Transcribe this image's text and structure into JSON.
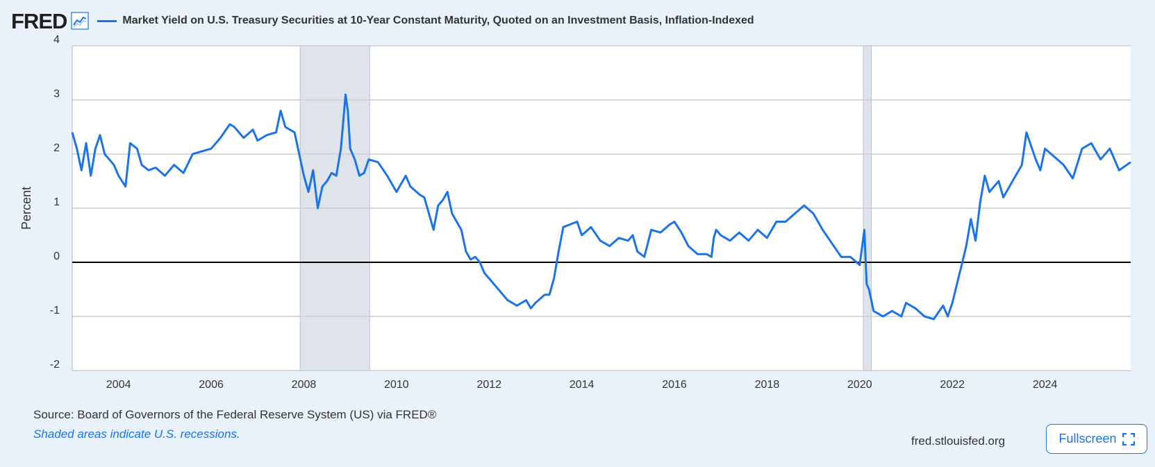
{
  "header": {
    "logo_text": "FRED",
    "logo_icon": "line-chart-icon",
    "series_title": "Market Yield on U.S. Treasury Securities at 10-Year Constant Maturity, Quoted on an Investment Basis, Inflation-Indexed"
  },
  "footer": {
    "source": "Source: Board of Governors of the Federal Reserve System (US) via FRED®",
    "recession_note": "Shaded areas indicate U.S. recessions.",
    "site": "fred.stlouisfed.org",
    "fullscreen_label": "Fullscreen",
    "fullscreen_icon": "fullscreen-icon"
  },
  "colors": {
    "line": "#1a73e8",
    "recession": "#dfe4ea",
    "background": "#e9f1fa",
    "plot": "#ffffff",
    "grid": "#c8cdd2",
    "zero_line": "#000000"
  },
  "chart_data": {
    "type": "line",
    "title": "Market Yield on U.S. Treasury Securities at 10-Year Constant Maturity, Quoted on an Investment Basis, Inflation-Indexed",
    "xlabel": "",
    "ylabel": "Percent",
    "xlim": [
      2003.0,
      2025.85
    ],
    "ylim": [
      -2,
      4
    ],
    "yticks": [
      -2,
      -1,
      0,
      1,
      2,
      3,
      4
    ],
    "xticks": [
      2004,
      2006,
      2008,
      2010,
      2012,
      2014,
      2016,
      2018,
      2020,
      2022,
      2024
    ],
    "grid": true,
    "recessions": [
      [
        2007.92,
        2009.42
      ],
      [
        2020.08,
        2020.25
      ]
    ],
    "series": [
      {
        "name": "Market Yield on U.S. Treasury Securities at 10-Year Constant Maturity, Quoted on an Investment Basis, Inflation-Indexed",
        "x": [
          2003.0,
          2003.1,
          2003.2,
          2003.3,
          2003.4,
          2003.5,
          2003.6,
          2003.7,
          2003.8,
          2003.9,
          2004.0,
          2004.15,
          2004.25,
          2004.4,
          2004.5,
          2004.65,
          2004.8,
          2005.0,
          2005.2,
          2005.4,
          2005.6,
          2005.8,
          2006.0,
          2006.2,
          2006.4,
          2006.5,
          2006.7,
          2006.9,
          2007.0,
          2007.2,
          2007.4,
          2007.5,
          2007.6,
          2007.8,
          2007.9,
          2008.0,
          2008.1,
          2008.2,
          2008.3,
          2008.4,
          2008.5,
          2008.6,
          2008.7,
          2008.8,
          2008.85,
          2008.9,
          2008.95,
          2009.0,
          2009.1,
          2009.2,
          2009.3,
          2009.4,
          2009.6,
          2009.8,
          2010.0,
          2010.2,
          2010.3,
          2010.5,
          2010.6,
          2010.7,
          2010.8,
          2010.9,
          2011.0,
          2011.1,
          2011.2,
          2011.4,
          2011.5,
          2011.6,
          2011.7,
          2011.8,
          2011.9,
          2012.0,
          2012.2,
          2012.4,
          2012.6,
          2012.8,
          2012.9,
          2013.0,
          2013.2,
          2013.3,
          2013.4,
          2013.5,
          2013.6,
          2013.75,
          2013.9,
          2014.0,
          2014.2,
          2014.4,
          2014.6,
          2014.8,
          2015.0,
          2015.1,
          2015.2,
          2015.35,
          2015.5,
          2015.7,
          2015.9,
          2016.0,
          2016.15,
          2016.3,
          2016.5,
          2016.7,
          2016.8,
          2016.85,
          2016.9,
          2017.0,
          2017.2,
          2017.4,
          2017.6,
          2017.8,
          2018.0,
          2018.2,
          2018.4,
          2018.6,
          2018.8,
          2019.0,
          2019.2,
          2019.4,
          2019.6,
          2019.8,
          2020.0,
          2020.1,
          2020.15,
          2020.2,
          2020.3,
          2020.5,
          2020.7,
          2020.9,
          2021.0,
          2021.2,
          2021.4,
          2021.6,
          2021.8,
          2021.9,
          2022.0,
          2022.1,
          2022.2,
          2022.3,
          2022.4,
          2022.5,
          2022.6,
          2022.7,
          2022.8,
          2022.9,
          2023.0,
          2023.1,
          2023.3,
          2023.5,
          2023.6,
          2023.8,
          2023.9,
          2024.0,
          2024.2,
          2024.4,
          2024.6,
          2024.8,
          2025.0,
          2025.2,
          2025.4,
          2025.6,
          2025.85
        ],
        "values": [
          2.4,
          2.1,
          1.7,
          2.2,
          1.6,
          2.1,
          2.35,
          2.0,
          1.9,
          1.8,
          1.6,
          1.4,
          2.2,
          2.1,
          1.8,
          1.7,
          1.75,
          1.6,
          1.8,
          1.65,
          2.0,
          2.05,
          2.1,
          2.3,
          2.55,
          2.5,
          2.3,
          2.45,
          2.25,
          2.35,
          2.4,
          2.8,
          2.5,
          2.4,
          2.0,
          1.6,
          1.3,
          1.7,
          1.0,
          1.4,
          1.5,
          1.65,
          1.6,
          2.1,
          2.6,
          3.1,
          2.8,
          2.1,
          1.9,
          1.6,
          1.65,
          1.9,
          1.85,
          1.6,
          1.3,
          1.6,
          1.4,
          1.25,
          1.2,
          0.9,
          0.6,
          1.05,
          1.15,
          1.3,
          0.9,
          0.6,
          0.2,
          0.05,
          0.1,
          0.0,
          -0.2,
          -0.3,
          -0.5,
          -0.7,
          -0.8,
          -0.7,
          -0.85,
          -0.75,
          -0.6,
          -0.6,
          -0.3,
          0.2,
          0.65,
          0.7,
          0.75,
          0.5,
          0.65,
          0.4,
          0.3,
          0.45,
          0.4,
          0.5,
          0.2,
          0.1,
          0.6,
          0.55,
          0.7,
          0.75,
          0.55,
          0.3,
          0.15,
          0.15,
          0.1,
          0.45,
          0.6,
          0.5,
          0.4,
          0.55,
          0.4,
          0.6,
          0.45,
          0.75,
          0.75,
          0.9,
          1.05,
          0.9,
          0.6,
          0.35,
          0.1,
          0.1,
          -0.05,
          0.6,
          -0.4,
          -0.5,
          -0.9,
          -1.0,
          -0.9,
          -1.0,
          -0.75,
          -0.85,
          -1.0,
          -1.05,
          -0.8,
          -1.0,
          -0.75,
          -0.4,
          -0.05,
          0.3,
          0.8,
          0.4,
          1.1,
          1.6,
          1.3,
          1.4,
          1.5,
          1.2,
          1.5,
          1.8,
          2.4,
          1.9,
          1.7,
          2.1,
          1.95,
          1.8,
          1.55,
          2.1,
          2.2,
          1.9,
          2.1,
          1.7,
          1.85
        ]
      }
    ]
  }
}
